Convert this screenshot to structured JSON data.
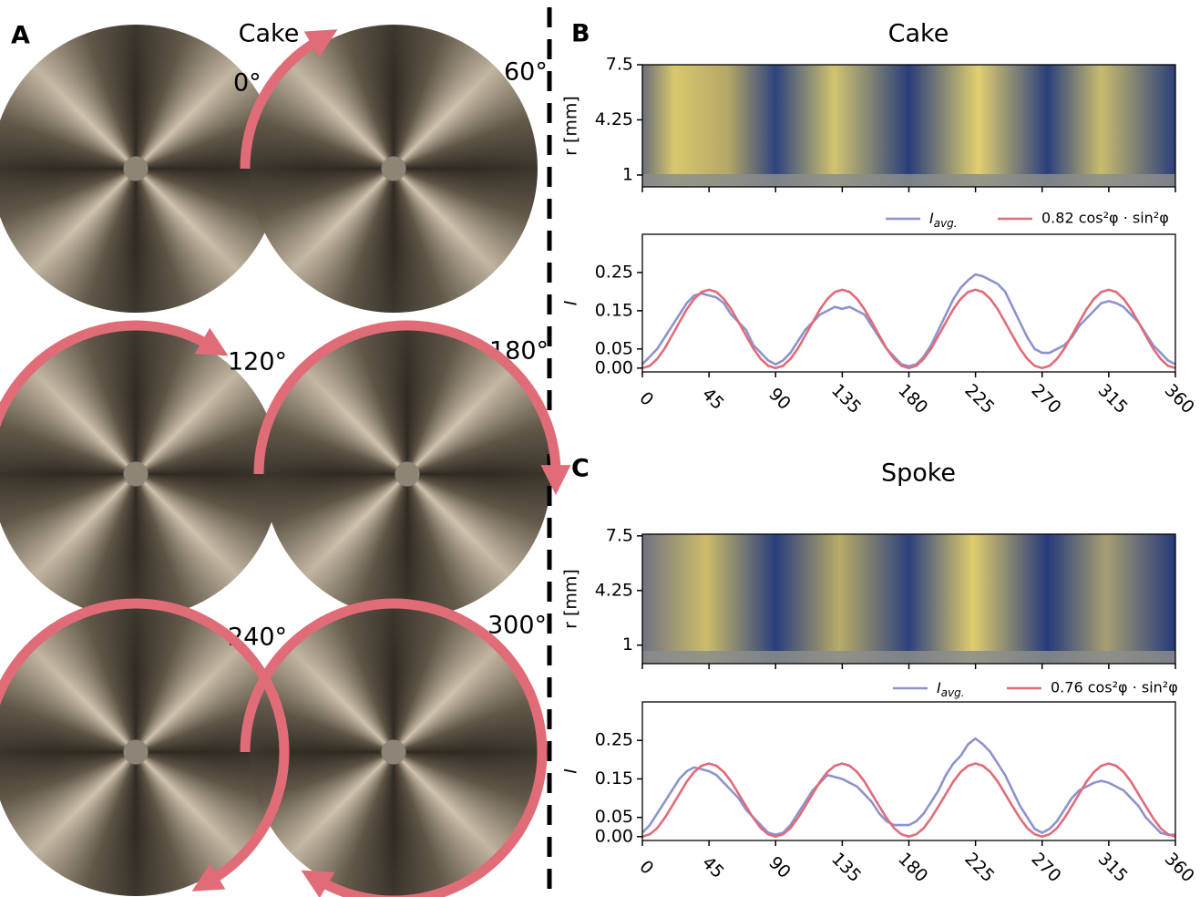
{
  "panel_a": {
    "label": "A",
    "title": "Cake",
    "angles": [
      "0°",
      "60°",
      "120°",
      "180°",
      "240°",
      "300°"
    ]
  },
  "chart_data": [
    {
      "type": "heatmap",
      "label": "B",
      "title": "Cake",
      "ylabel": "r [mm]",
      "xlim": [
        0,
        360
      ],
      "xticks": [
        0,
        45,
        90,
        135,
        180,
        225,
        270,
        315,
        360
      ],
      "ylim": [
        0.3,
        7.5
      ],
      "yticks": [
        7.5,
        4.25,
        1
      ]
    },
    {
      "type": "line",
      "ylabel": "I",
      "xlim": [
        0,
        360
      ],
      "xticks": [
        0,
        45,
        90,
        135,
        180,
        225,
        270,
        315,
        360
      ],
      "ylim": [
        -0.01,
        0.35
      ],
      "yticks": [
        {
          "value": 0,
          "label": "0.00"
        },
        0.05,
        0.15,
        0.25
      ],
      "x": [
        0,
        5,
        10,
        15,
        20,
        25,
        30,
        35,
        40,
        45,
        50,
        55,
        60,
        65,
        70,
        75,
        80,
        85,
        90,
        95,
        100,
        105,
        110,
        115,
        120,
        125,
        130,
        135,
        140,
        145,
        150,
        155,
        160,
        165,
        170,
        175,
        180,
        185,
        190,
        195,
        200,
        205,
        210,
        215,
        220,
        225,
        230,
        235,
        240,
        245,
        250,
        255,
        260,
        265,
        270,
        275,
        280,
        285,
        290,
        295,
        300,
        305,
        310,
        315,
        320,
        325,
        330,
        335,
        340,
        345,
        350,
        355,
        360
      ],
      "series": [
        {
          "name": "Iavg.",
          "color": "#8d93cc",
          "values": [
            0.01,
            0.03,
            0.05,
            0.08,
            0.11,
            0.14,
            0.17,
            0.19,
            0.195,
            0.19,
            0.185,
            0.17,
            0.14,
            0.12,
            0.1,
            0.06,
            0.04,
            0.02,
            0.01,
            0.02,
            0.04,
            0.07,
            0.1,
            0.12,
            0.14,
            0.15,
            0.16,
            0.155,
            0.16,
            0.15,
            0.14,
            0.11,
            0.08,
            0.05,
            0.03,
            0.01,
            0.005,
            0.01,
            0.03,
            0.06,
            0.1,
            0.14,
            0.18,
            0.21,
            0.23,
            0.245,
            0.24,
            0.23,
            0.22,
            0.2,
            0.16,
            0.12,
            0.08,
            0.05,
            0.04,
            0.04,
            0.05,
            0.06,
            0.08,
            0.11,
            0.13,
            0.15,
            0.17,
            0.175,
            0.17,
            0.16,
            0.14,
            0.12,
            0.09,
            0.06,
            0.04,
            0.02,
            0.01
          ]
        },
        {
          "name": "0.82 cos²φ · sin²φ",
          "color": "#e06c78",
          "values": [
            0,
            0.006,
            0.024,
            0.051,
            0.085,
            0.12,
            0.154,
            0.181,
            0.199,
            0.205,
            0.199,
            0.181,
            0.154,
            0.12,
            0.085,
            0.051,
            0.024,
            0.006,
            0,
            0.006,
            0.024,
            0.051,
            0.085,
            0.12,
            0.154,
            0.181,
            0.199,
            0.205,
            0.199,
            0.181,
            0.154,
            0.12,
            0.085,
            0.051,
            0.024,
            0.006,
            0,
            0.006,
            0.024,
            0.051,
            0.085,
            0.12,
            0.154,
            0.181,
            0.199,
            0.205,
            0.199,
            0.181,
            0.154,
            0.12,
            0.085,
            0.051,
            0.024,
            0.006,
            0,
            0.006,
            0.024,
            0.051,
            0.085,
            0.12,
            0.154,
            0.181,
            0.199,
            0.205,
            0.199,
            0.181,
            0.154,
            0.12,
            0.085,
            0.051,
            0.024,
            0.006,
            0
          ]
        }
      ]
    },
    {
      "type": "heatmap",
      "label": "C",
      "title": "Spoke",
      "ylabel": "r [mm]",
      "xlim": [
        0,
        360
      ],
      "xticks": [
        0,
        45,
        90,
        135,
        180,
        225,
        270,
        315,
        360
      ],
      "ylim": [
        -0.1,
        7.6
      ],
      "yticks": [
        7.5,
        4.25,
        1
      ]
    },
    {
      "type": "line",
      "ylabel": "I",
      "xlim": [
        0,
        360
      ],
      "xticks": [
        0,
        45,
        90,
        135,
        180,
        225,
        270,
        315,
        360
      ],
      "ylim": [
        -0.01,
        0.35
      ],
      "yticks": [
        {
          "value": 0,
          "label": "0.00"
        },
        0.05,
        0.15,
        0.25
      ],
      "x": [
        0,
        5,
        10,
        15,
        20,
        25,
        30,
        35,
        40,
        45,
        50,
        55,
        60,
        65,
        70,
        75,
        80,
        85,
        90,
        95,
        100,
        105,
        110,
        115,
        120,
        125,
        130,
        135,
        140,
        145,
        150,
        155,
        160,
        165,
        170,
        175,
        180,
        185,
        190,
        195,
        200,
        205,
        210,
        215,
        220,
        225,
        230,
        235,
        240,
        245,
        250,
        255,
        260,
        265,
        270,
        275,
        280,
        285,
        290,
        295,
        300,
        305,
        310,
        315,
        320,
        325,
        330,
        335,
        340,
        345,
        350,
        355,
        360
      ],
      "series": [
        {
          "name": "Iavg.",
          "color": "#8d93cc",
          "values": [
            0.01,
            0.03,
            0.06,
            0.09,
            0.12,
            0.15,
            0.17,
            0.18,
            0.175,
            0.17,
            0.16,
            0.14,
            0.12,
            0.1,
            0.07,
            0.05,
            0.03,
            0.01,
            0.005,
            0.01,
            0.03,
            0.06,
            0.09,
            0.12,
            0.14,
            0.16,
            0.155,
            0.15,
            0.14,
            0.13,
            0.11,
            0.09,
            0.06,
            0.04,
            0.03,
            0.03,
            0.03,
            0.04,
            0.06,
            0.09,
            0.12,
            0.16,
            0.19,
            0.21,
            0.24,
            0.255,
            0.24,
            0.22,
            0.19,
            0.16,
            0.12,
            0.08,
            0.05,
            0.02,
            0.01,
            0.02,
            0.04,
            0.07,
            0.1,
            0.12,
            0.13,
            0.14,
            0.145,
            0.14,
            0.13,
            0.12,
            0.1,
            0.08,
            0.05,
            0.03,
            0.01,
            0.005,
            0.005
          ]
        },
        {
          "name": "0.76 cos²φ · sin²φ",
          "color": "#e06c78",
          "values": [
            0,
            0.006,
            0.022,
            0.048,
            0.079,
            0.111,
            0.143,
            0.168,
            0.184,
            0.19,
            0.184,
            0.168,
            0.143,
            0.111,
            0.079,
            0.048,
            0.022,
            0.006,
            0,
            0.006,
            0.022,
            0.048,
            0.079,
            0.111,
            0.143,
            0.168,
            0.184,
            0.19,
            0.184,
            0.168,
            0.143,
            0.111,
            0.079,
            0.048,
            0.022,
            0.006,
            0,
            0.006,
            0.022,
            0.048,
            0.079,
            0.111,
            0.143,
            0.168,
            0.184,
            0.19,
            0.184,
            0.168,
            0.143,
            0.111,
            0.079,
            0.048,
            0.022,
            0.006,
            0,
            0.006,
            0.022,
            0.048,
            0.079,
            0.111,
            0.143,
            0.168,
            0.184,
            0.19,
            0.184,
            0.168,
            0.143,
            0.111,
            0.079,
            0.048,
            0.022,
            0.006,
            0
          ]
        }
      ]
    }
  ]
}
